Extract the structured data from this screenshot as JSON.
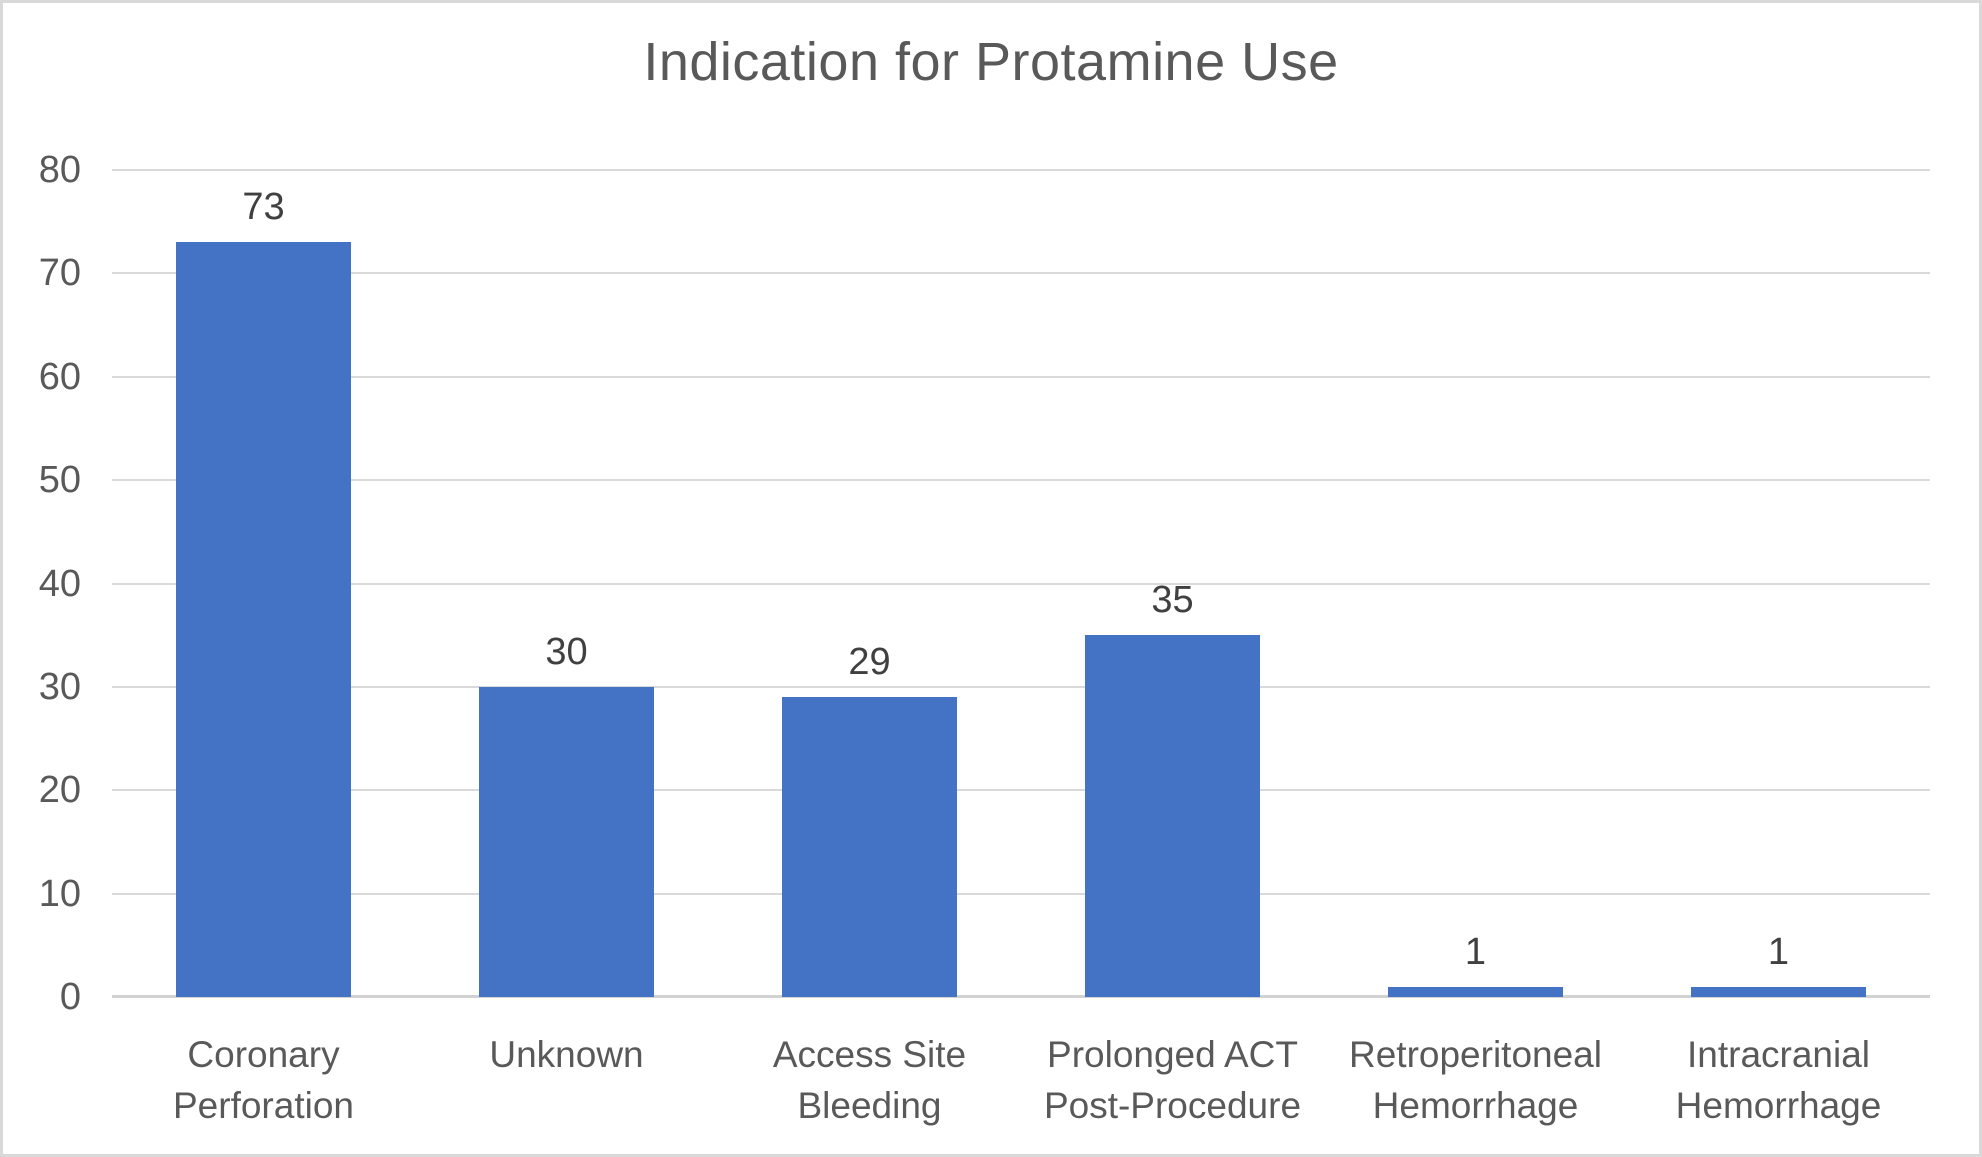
{
  "title": "Indication for Protamine Use",
  "chart_data": {
    "type": "bar",
    "title": "Indication for Protamine Use",
    "categories": [
      "Coronary Perforation",
      "Unknown",
      "Access Site Bleeding",
      "Prolonged ACT Post-Procedure",
      "Retroperitoneal Hemorrhage",
      "Intracranial Hemorrhage"
    ],
    "category_lines": [
      [
        "Coronary",
        "Perforation"
      ],
      [
        "Unknown"
      ],
      [
        "Access Site",
        "Bleeding"
      ],
      [
        "Prolonged ACT",
        "Post-Procedure"
      ],
      [
        "Retroperitoneal",
        "Hemorrhage"
      ],
      [
        "Intracranial",
        "Hemorrhage"
      ]
    ],
    "values": [
      73,
      30,
      29,
      35,
      1,
      1
    ],
    "data_labels": [
      "73",
      "30",
      "29",
      "35",
      "1",
      "1"
    ],
    "y_ticks": [
      "0",
      "10",
      "20",
      "30",
      "40",
      "50",
      "60",
      "70",
      "80"
    ],
    "ylim": [
      0,
      80
    ],
    "xlabel": "",
    "ylabel": "",
    "grid": "horizontal",
    "legend_position": "none",
    "colors": {
      "bar": "#4472C4",
      "gridline": "#D9D9D9",
      "axis_line": "#D2D2D2",
      "tick_label": "#595959",
      "category_label": "#595959",
      "data_label": "#404040",
      "title": "#595959",
      "background": "#FFFFFF",
      "chart_border": "#D9D9D9"
    }
  }
}
